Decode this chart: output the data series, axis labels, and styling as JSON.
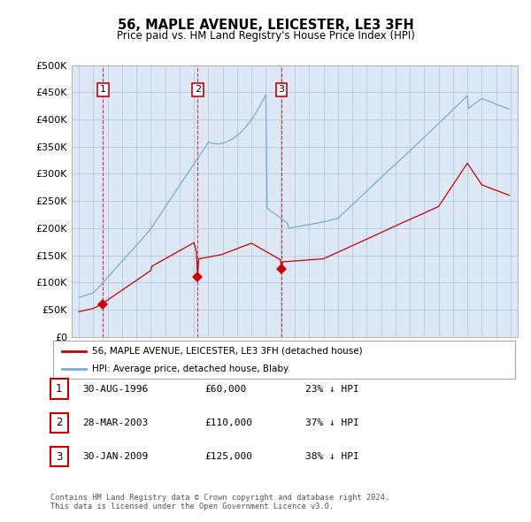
{
  "title": "56, MAPLE AVENUE, LEICESTER, LE3 3FH",
  "subtitle": "Price paid vs. HM Land Registry's House Price Index (HPI)",
  "ylim": [
    0,
    500000
  ],
  "yticks": [
    0,
    50000,
    100000,
    150000,
    200000,
    250000,
    300000,
    350000,
    400000,
    450000,
    500000
  ],
  "ytick_labels": [
    "£0",
    "£50K",
    "£100K",
    "£150K",
    "£200K",
    "£250K",
    "£300K",
    "£350K",
    "£400K",
    "£450K",
    "£500K"
  ],
  "xlim_start": 1994.5,
  "xlim_end": 2025.5,
  "plot_bg_color": "#dce8f5",
  "grid_color": "#b0c4d8",
  "red_line_color": "#cc0000",
  "blue_line_color": "#7aadd4",
  "sale_points": [
    {
      "year": 1996.667,
      "price": 60000,
      "label": "1"
    },
    {
      "year": 2003.25,
      "price": 110000,
      "label": "2"
    },
    {
      "year": 2009.083,
      "price": 125000,
      "label": "3"
    }
  ],
  "legend_entries": [
    "56, MAPLE AVENUE, LEICESTER, LE3 3FH (detached house)",
    "HPI: Average price, detached house, Blaby"
  ],
  "table_rows": [
    {
      "num": "1",
      "date": "30-AUG-1996",
      "price": "£60,000",
      "hpi": "23% ↓ HPI"
    },
    {
      "num": "2",
      "date": "28-MAR-2003",
      "price": "£110,000",
      "hpi": "37% ↓ HPI"
    },
    {
      "num": "3",
      "date": "30-JAN-2009",
      "price": "£125,000",
      "hpi": "38% ↓ HPI"
    }
  ],
  "footer": "Contains HM Land Registry data © Crown copyright and database right 2024.\nThis data is licensed under the Open Government Licence v3.0."
}
